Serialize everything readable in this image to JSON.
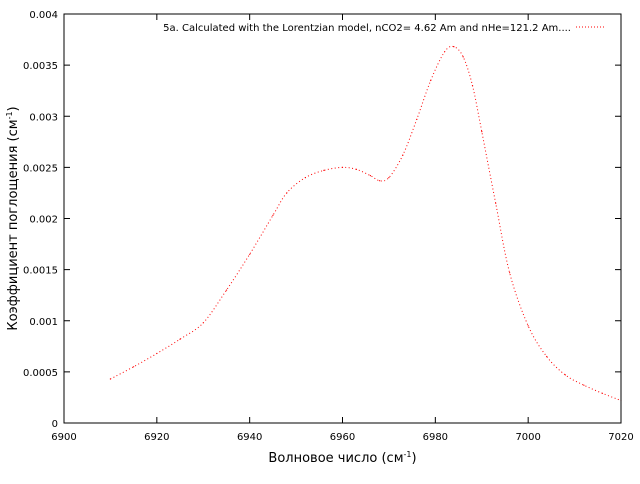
{
  "chart_data": {
    "type": "line",
    "title": "",
    "xlabel": "Волновое число (см",
    "xlabel_sup": "-1",
    "xlabel_suffix": ")",
    "ylabel": "Коэффициент поглощения (см",
    "ylabel_sup": "-1",
    "ylabel_suffix": ")",
    "xlim": [
      6900,
      7020
    ],
    "ylim": [
      0,
      0.004
    ],
    "x_ticks": [
      "6900",
      "6920",
      "6940",
      "6960",
      "6980",
      "7000",
      "7020"
    ],
    "x_tick_values": [
      6900,
      6920,
      6940,
      6960,
      6980,
      7000,
      7020
    ],
    "y_ticks": [
      "0",
      "0.0005",
      "0.001",
      "0.0015",
      "0.002",
      "0.0025",
      "0.003",
      "0.0035",
      "0.004"
    ],
    "y_tick_values": [
      0,
      0.0005,
      0.001,
      0.0015,
      0.002,
      0.0025,
      0.003,
      0.0035,
      0.004
    ],
    "grid": false,
    "legend_position": "top-right",
    "series": [
      {
        "name": "5a. Calculated with the Lorentzian model, nCO2= 4.62 Am and nHe=121.2 Am....",
        "color": "#ff0000",
        "style": "dotted",
        "x": [
          6910,
          6915,
          6920,
          6925,
          6930,
          6935,
          6940,
          6945,
          6948,
          6952,
          6956,
          6960,
          6963,
          6966,
          6968,
          6970,
          6973,
          6976,
          6979,
          6982,
          6984,
          6986,
          6988,
          6990,
          6993,
          6996,
          7000,
          7004,
          7008,
          7012,
          7016,
          7020
        ],
        "y": [
          0.00043,
          0.00055,
          0.00068,
          0.00082,
          0.00098,
          0.0013,
          0.00165,
          0.00203,
          0.00225,
          0.0024,
          0.00247,
          0.0025,
          0.00248,
          0.00242,
          0.00237,
          0.0024,
          0.00262,
          0.00297,
          0.00335,
          0.00363,
          0.00368,
          0.00358,
          0.0033,
          0.00285,
          0.00215,
          0.00147,
          0.00095,
          0.00065,
          0.00047,
          0.00037,
          0.00029,
          0.00022
        ]
      }
    ]
  }
}
